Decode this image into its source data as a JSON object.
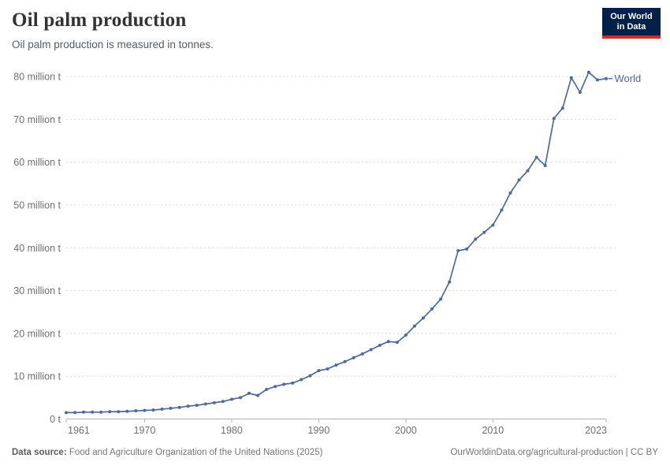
{
  "header": {
    "title": "Oil palm production",
    "subtitle": "Oil palm production is measured in tonnes.",
    "logo": {
      "line1": "Our World",
      "line2": "in Data"
    }
  },
  "footer": {
    "source_label": "Data source:",
    "source_text": " Food and Agriculture Organization of the United Nations (2025)",
    "attribution": "OurWorldinData.org/agricultural-production | CC BY"
  },
  "colors": {
    "line": "#4c6a9c",
    "grid": "#d9d9d9",
    "axis": "#b3b3b3",
    "tick_text": "#6e6e6e",
    "logo_navy": "#002147",
    "logo_red": "#d7282f"
  },
  "chart_data": {
    "type": "line",
    "title": "Oil palm production",
    "ylabel": "",
    "xlabel": "",
    "unit": "tonnes",
    "xlim": [
      1961,
      2023
    ],
    "ylim": [
      0,
      80000000
    ],
    "grid": "horizontal-dashed",
    "legend_position": "end-of-line-label",
    "x": [
      1961,
      1962,
      1963,
      1964,
      1965,
      1966,
      1967,
      1968,
      1969,
      1970,
      1971,
      1972,
      1973,
      1974,
      1975,
      1976,
      1977,
      1978,
      1979,
      1980,
      1981,
      1982,
      1983,
      1984,
      1985,
      1986,
      1987,
      1988,
      1989,
      1990,
      1991,
      1992,
      1993,
      1994,
      1995,
      1996,
      1997,
      1998,
      1999,
      2000,
      2001,
      2002,
      2003,
      2004,
      2005,
      2006,
      2007,
      2008,
      2009,
      2010,
      2011,
      2012,
      2013,
      2014,
      2015,
      2016,
      2017,
      2018,
      2019,
      2020,
      2021,
      2022,
      2023
    ],
    "series": [
      {
        "name": "World",
        "values_million_t": [
          1.5,
          1.5,
          1.6,
          1.6,
          1.6,
          1.7,
          1.7,
          1.8,
          1.9,
          2.0,
          2.1,
          2.3,
          2.5,
          2.7,
          3.0,
          3.2,
          3.5,
          3.8,
          4.1,
          4.6,
          5.0,
          6.0,
          5.5,
          6.9,
          7.6,
          8.1,
          8.4,
          9.2,
          10.1,
          11.3,
          11.7,
          12.6,
          13.4,
          14.3,
          15.2,
          16.2,
          17.2,
          18.1,
          17.9,
          19.6,
          21.7,
          23.6,
          25.7,
          28.0,
          32.0,
          39.3,
          39.7,
          42.0,
          43.6,
          45.3,
          48.8,
          52.8,
          55.8,
          58.0,
          61.1,
          59.2,
          70.2,
          72.6,
          79.7,
          76.3,
          81.0,
          79.2,
          79.5
        ]
      }
    ],
    "x_ticks": [
      1961,
      1970,
      1980,
      1990,
      2000,
      2010,
      2023
    ],
    "y_ticks": [
      {
        "value": 0,
        "label": "0 t"
      },
      {
        "value": 10,
        "label": "10 million t"
      },
      {
        "value": 20,
        "label": "20 million t"
      },
      {
        "value": 30,
        "label": "30 million t"
      },
      {
        "value": 40,
        "label": "40 million t"
      },
      {
        "value": 50,
        "label": "50 million t"
      },
      {
        "value": 60,
        "label": "60 million t"
      },
      {
        "value": 70,
        "label": "70 million t"
      },
      {
        "value": 80,
        "label": "80 million t"
      }
    ]
  }
}
